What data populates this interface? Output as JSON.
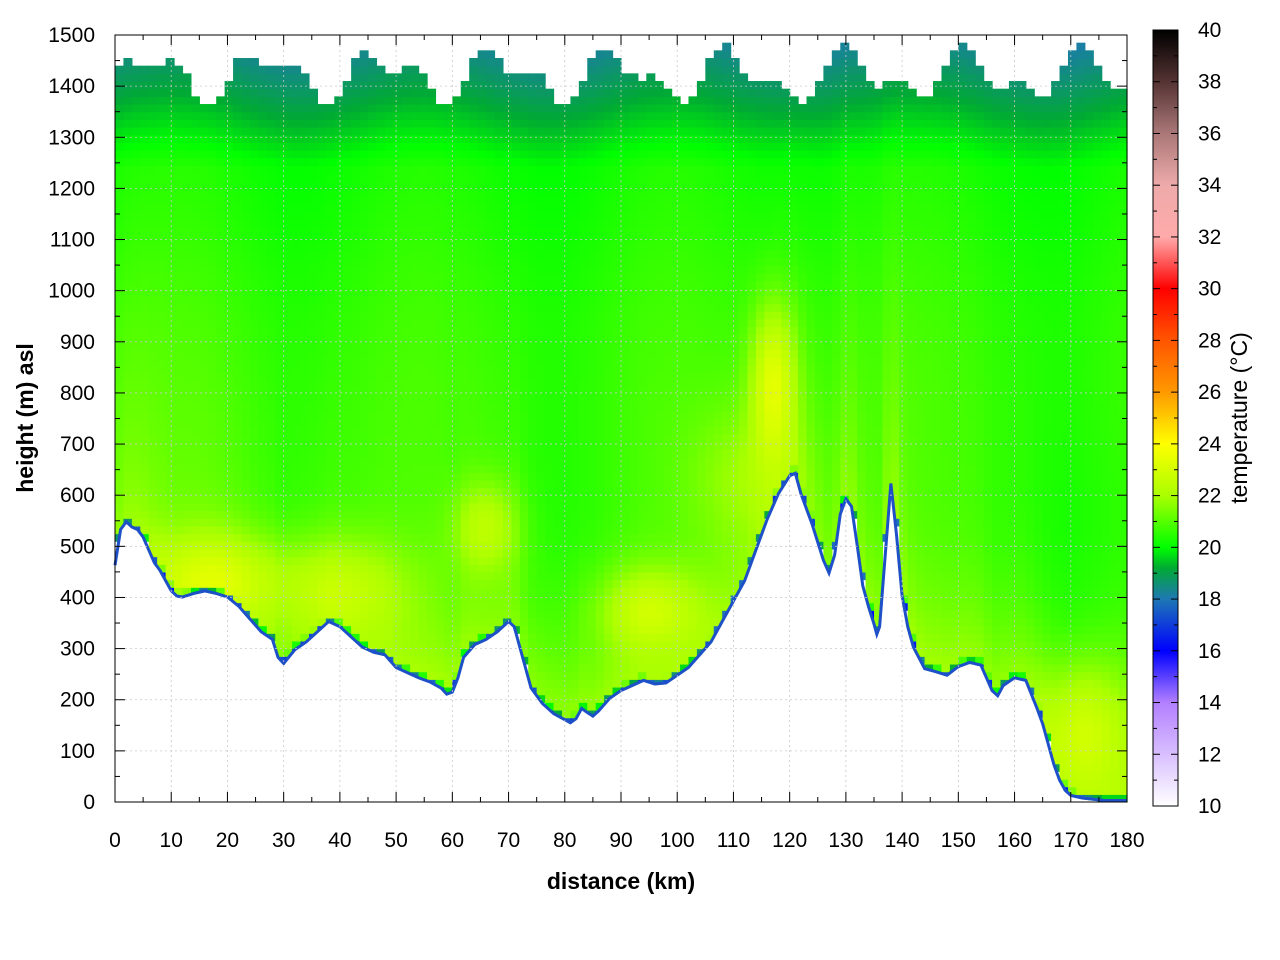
{
  "chart_data": {
    "type": "heatmap",
    "title": "",
    "xlabel": "distance (km)",
    "ylabel": "height (m) asl",
    "xlim": [
      0,
      180
    ],
    "ylim": [
      0,
      1500
    ],
    "xticks": [
      "0",
      "10",
      "20",
      "30",
      "40",
      "50",
      "60",
      "70",
      "80",
      "90",
      "100",
      "110",
      "120",
      "130",
      "140",
      "150",
      "160",
      "170",
      "180"
    ],
    "yticks": [
      "0",
      "100",
      "200",
      "300",
      "400",
      "500",
      "600",
      "700",
      "800",
      "900",
      "1000",
      "1100",
      "1200",
      "1300",
      "1400",
      "1500"
    ],
    "grid": true,
    "colorbar": {
      "label": "temperature (°C)",
      "range": [
        10,
        40
      ],
      "ticks": [
        "10",
        "12",
        "14",
        "16",
        "18",
        "20",
        "22",
        "24",
        "26",
        "28",
        "30",
        "32",
        "34",
        "36",
        "38",
        "40"
      ],
      "stops": [
        {
          "value": 10,
          "color": "#ffffff"
        },
        {
          "value": 14,
          "color": "#b27fff"
        },
        {
          "value": 16,
          "color": "#0000ff"
        },
        {
          "value": 18,
          "color": "#1e78b4"
        },
        {
          "value": 19.2,
          "color": "#00aa33"
        },
        {
          "value": 20,
          "color": "#00ff00"
        },
        {
          "value": 22,
          "color": "#aaff00"
        },
        {
          "value": 24,
          "color": "#ffff00"
        },
        {
          "value": 26,
          "color": "#ff9900"
        },
        {
          "value": 28,
          "color": "#ff5500"
        },
        {
          "value": 30,
          "color": "#ff0000"
        },
        {
          "value": 32,
          "color": "#ffaaaa"
        },
        {
          "value": 34,
          "color": "#eeaaaa"
        },
        {
          "value": 36,
          "color": "#aa7777"
        },
        {
          "value": 38,
          "color": "#553333"
        },
        {
          "value": 40,
          "color": "#000000"
        }
      ]
    },
    "terrain": [
      [
        0,
        460
      ],
      [
        1,
        530
      ],
      [
        2,
        545
      ],
      [
        3,
        535
      ],
      [
        4,
        530
      ],
      [
        5,
        515
      ],
      [
        6,
        490
      ],
      [
        7,
        465
      ],
      [
        8,
        450
      ],
      [
        9,
        430
      ],
      [
        10,
        410
      ],
      [
        11,
        400
      ],
      [
        12,
        398
      ],
      [
        14,
        405
      ],
      [
        16,
        410
      ],
      [
        18,
        405
      ],
      [
        20,
        398
      ],
      [
        22,
        380
      ],
      [
        24,
        355
      ],
      [
        26,
        330
      ],
      [
        28,
        315
      ],
      [
        29,
        280
      ],
      [
        30,
        268
      ],
      [
        32,
        295
      ],
      [
        34,
        310
      ],
      [
        36,
        330
      ],
      [
        38,
        350
      ],
      [
        40,
        340
      ],
      [
        42,
        320
      ],
      [
        44,
        300
      ],
      [
        46,
        290
      ],
      [
        48,
        285
      ],
      [
        50,
        260
      ],
      [
        52,
        250
      ],
      [
        54,
        240
      ],
      [
        56,
        232
      ],
      [
        58,
        220
      ],
      [
        59,
        208
      ],
      [
        60,
        212
      ],
      [
        61,
        240
      ],
      [
        62,
        280
      ],
      [
        64,
        305
      ],
      [
        66,
        315
      ],
      [
        68,
        330
      ],
      [
        70,
        350
      ],
      [
        71,
        340
      ],
      [
        72,
        300
      ],
      [
        74,
        220
      ],
      [
        76,
        190
      ],
      [
        78,
        170
      ],
      [
        80,
        158
      ],
      [
        81,
        152
      ],
      [
        82,
        160
      ],
      [
        83,
        180
      ],
      [
        84,
        172
      ],
      [
        85,
        165
      ],
      [
        86,
        175
      ],
      [
        88,
        200
      ],
      [
        90,
        215
      ],
      [
        92,
        225
      ],
      [
        94,
        235
      ],
      [
        96,
        228
      ],
      [
        98,
        230
      ],
      [
        100,
        245
      ],
      [
        102,
        260
      ],
      [
        104,
        285
      ],
      [
        106,
        310
      ],
      [
        108,
        350
      ],
      [
        110,
        390
      ],
      [
        112,
        430
      ],
      [
        114,
        490
      ],
      [
        116,
        550
      ],
      [
        118,
        600
      ],
      [
        120,
        635
      ],
      [
        121,
        640
      ],
      [
        122,
        600
      ],
      [
        124,
        540
      ],
      [
        126,
        470
      ],
      [
        127,
        445
      ],
      [
        128,
        480
      ],
      [
        129,
        560
      ],
      [
        130,
        590
      ],
      [
        131,
        575
      ],
      [
        132,
        500
      ],
      [
        133,
        420
      ],
      [
        134,
        380
      ],
      [
        135,
        345
      ],
      [
        135.5,
        325
      ],
      [
        136,
        340
      ],
      [
        137,
        480
      ],
      [
        138,
        620
      ],
      [
        139,
        520
      ],
      [
        140,
        400
      ],
      [
        141,
        340
      ],
      [
        142,
        300
      ],
      [
        144,
        258
      ],
      [
        146,
        252
      ],
      [
        148,
        245
      ],
      [
        150,
        262
      ],
      [
        152,
        270
      ],
      [
        154,
        265
      ],
      [
        155,
        240
      ],
      [
        156,
        215
      ],
      [
        157,
        205
      ],
      [
        158,
        225
      ],
      [
        160,
        240
      ],
      [
        162,
        235
      ],
      [
        164,
        180
      ],
      [
        165,
        150
      ],
      [
        166,
        110
      ],
      [
        167,
        70
      ],
      [
        168,
        40
      ],
      [
        169,
        20
      ],
      [
        170,
        10
      ],
      [
        172,
        5
      ],
      [
        176,
        0
      ],
      [
        180,
        0
      ]
    ]
  }
}
